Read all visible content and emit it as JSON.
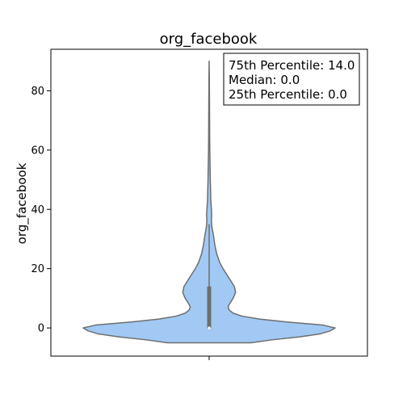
{
  "chart_data": {
    "type": "violin",
    "title": "org_facebook",
    "xlabel": "",
    "ylabel": "org_facebook",
    "ylim": [
      -9.5,
      94
    ],
    "y_ticks": [
      0,
      20,
      40,
      60,
      80
    ],
    "grid": false,
    "fill_color": "#a1c9f4",
    "edge_color": "#6e6e6e",
    "distribution": {
      "min": -5,
      "max": 90,
      "percentile_25": 0.0,
      "median": 0.0,
      "percentile_75": 14.0,
      "whisker_high": 35
    },
    "density_profile": [
      {
        "y": -5,
        "w": 0.33
      },
      {
        "y": -4,
        "w": 0.5
      },
      {
        "y": -3,
        "w": 0.72
      },
      {
        "y": -2,
        "w": 0.88
      },
      {
        "y": -1,
        "w": 0.96
      },
      {
        "y": 0,
        "w": 1.0
      },
      {
        "y": 1,
        "w": 0.9
      },
      {
        "y": 2,
        "w": 0.62
      },
      {
        "y": 3,
        "w": 0.4
      },
      {
        "y": 4,
        "w": 0.26
      },
      {
        "y": 5,
        "w": 0.19
      },
      {
        "y": 6,
        "w": 0.16
      },
      {
        "y": 7,
        "w": 0.15
      },
      {
        "y": 8,
        "w": 0.16
      },
      {
        "y": 10,
        "w": 0.19
      },
      {
        "y": 12,
        "w": 0.21
      },
      {
        "y": 14,
        "w": 0.2
      },
      {
        "y": 16,
        "w": 0.17
      },
      {
        "y": 18,
        "w": 0.14
      },
      {
        "y": 20,
        "w": 0.11
      },
      {
        "y": 22,
        "w": 0.085
      },
      {
        "y": 25,
        "w": 0.06
      },
      {
        "y": 28,
        "w": 0.045
      },
      {
        "y": 31,
        "w": 0.035
      },
      {
        "y": 34,
        "w": 0.022
      },
      {
        "y": 36,
        "w": 0.018
      },
      {
        "y": 38,
        "w": 0.02
      },
      {
        "y": 40,
        "w": 0.018
      },
      {
        "y": 43,
        "w": 0.013
      },
      {
        "y": 47,
        "w": 0.011
      },
      {
        "y": 50,
        "w": 0.009
      },
      {
        "y": 55,
        "w": 0.007
      },
      {
        "y": 60,
        "w": 0.005
      },
      {
        "y": 65,
        "w": 0.004
      },
      {
        "y": 70,
        "w": 0.0035
      },
      {
        "y": 75,
        "w": 0.003
      },
      {
        "y": 80,
        "w": 0.002
      },
      {
        "y": 85,
        "w": 0.0015
      },
      {
        "y": 90,
        "w": 0.0
      }
    ],
    "stats_box": {
      "line1": "75th Percentile: 14.0",
      "line2": "Median: 0.0",
      "line3": "25th Percentile: 0.0",
      "placement": "top-right"
    }
  }
}
